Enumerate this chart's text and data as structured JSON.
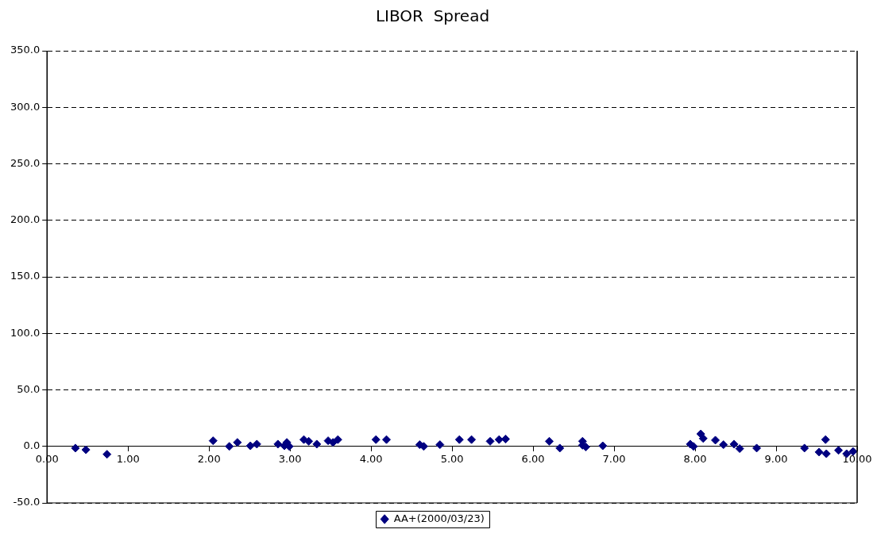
{
  "chart_data": {
    "type": "scatter",
    "title": "LIBOR  Spread",
    "series": [
      {
        "name": "AA+(2000/03/23)",
        "color": "#000080",
        "x": [
          0.35,
          0.48,
          0.74,
          2.05,
          2.25,
          2.35,
          2.51,
          2.59,
          2.85,
          2.93,
          2.96,
          2.99,
          3.17,
          3.23,
          3.33,
          3.47,
          3.53,
          3.59,
          4.06,
          4.19,
          4.6,
          4.65,
          4.85,
          5.09,
          5.24,
          5.47,
          5.58,
          5.66,
          6.2,
          6.33,
          6.61,
          6.61,
          6.65,
          6.86,
          7.94,
          7.98,
          8.07,
          8.1,
          8.25,
          8.35,
          8.48,
          8.55,
          8.76,
          9.35,
          9.53,
          9.61,
          9.62,
          9.77,
          9.87,
          9.95
        ],
        "values": [
          -1.5,
          -3,
          -7,
          5,
          0,
          3.5,
          0.5,
          2,
          2,
          0.5,
          3.5,
          0,
          6,
          4.5,
          2,
          5,
          3.5,
          6,
          6,
          6,
          1.5,
          0,
          1.5,
          6,
          6,
          4.5,
          6,
          6.5,
          4.5,
          -1.5,
          4.5,
          1,
          -0.5,
          0.5,
          2,
          0,
          11,
          7,
          5.5,
          1.5,
          2,
          -2,
          -1.5,
          -1.5,
          -5,
          6,
          -6.5,
          -3.5,
          -6.5,
          -4.5
        ]
      }
    ],
    "xlim": [
      0,
      10
    ],
    "xticks": [
      {
        "value": 0,
        "label": "0.00"
      },
      {
        "value": 1,
        "label": "1.00"
      },
      {
        "value": 2,
        "label": "2.00"
      },
      {
        "value": 3,
        "label": "3.00"
      },
      {
        "value": 4,
        "label": "4.00"
      },
      {
        "value": 5,
        "label": "5.00"
      },
      {
        "value": 6,
        "label": "6.00"
      },
      {
        "value": 7,
        "label": "7.00"
      },
      {
        "value": 8,
        "label": "8.00"
      },
      {
        "value": 9,
        "label": "9.00"
      },
      {
        "value": 10,
        "label": "10.00"
      }
    ],
    "ylim": [
      -50,
      350
    ],
    "yticks": [
      {
        "value": -50,
        "label": "-50.0"
      },
      {
        "value": 0,
        "label": "0.0"
      },
      {
        "value": 50,
        "label": "50.0"
      },
      {
        "value": 100,
        "label": "100.0"
      },
      {
        "value": 150,
        "label": "150.0"
      },
      {
        "value": 200,
        "label": "200.0"
      },
      {
        "value": 250,
        "label": "250.0"
      },
      {
        "value": 300,
        "label": "300.0"
      },
      {
        "value": 350,
        "label": "350.0"
      }
    ],
    "grid": "y",
    "legend": "bottom",
    "marker": "diamond"
  }
}
